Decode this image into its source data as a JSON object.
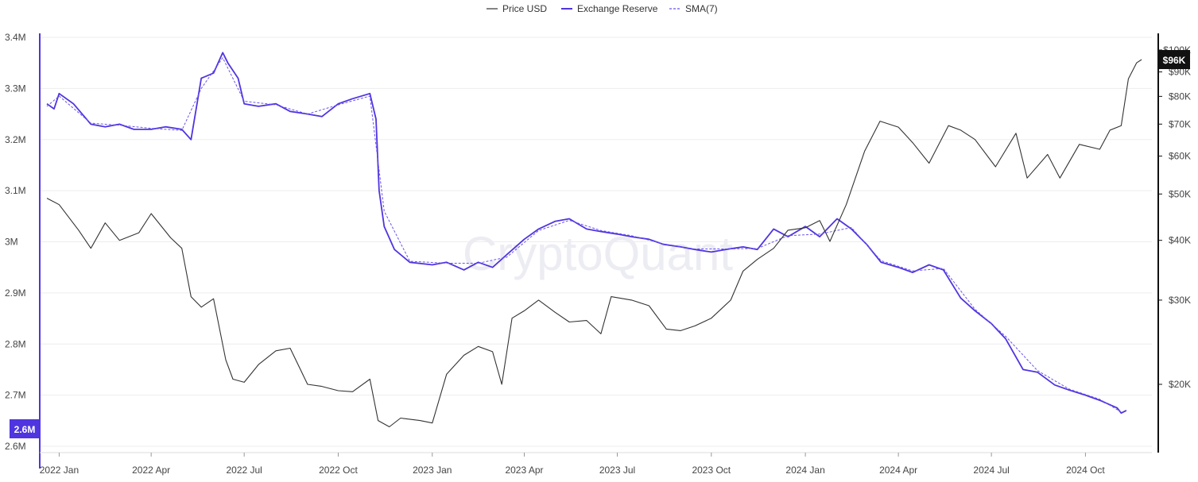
{
  "chart_data": {
    "type": "line",
    "watermark": "CryptoQuant",
    "legend": {
      "placement": "top-center",
      "items": [
        {
          "label": "Price USD",
          "style": "solid-thin",
          "color": "#333333"
        },
        {
          "label": "Exchange Reserve",
          "style": "solid-thick",
          "color": "#4f35e0"
        },
        {
          "label": "SMA(7)",
          "style": "dashed",
          "color": "#6a55ec"
        }
      ]
    },
    "x_axis": {
      "ticks": [
        "2022 Jan",
        "2022 Apr",
        "2022 Jul",
        "2022 Oct",
        "2023 Jan",
        "2023 Apr",
        "2023 Jul",
        "2023 Oct",
        "2024 Jan",
        "2024 Apr",
        "2024 Jul",
        "2024 Oct"
      ]
    },
    "y_left": {
      "label": "",
      "range": [
        2600000,
        3400000
      ],
      "ticks": [
        "3.4M",
        "3.3M",
        "3.2M",
        "3.1M",
        "3M",
        "2.9M",
        "2.8M",
        "2.7M",
        "2.6M"
      ],
      "current_badge": "2.6M",
      "color": "#4f35e0"
    },
    "y_right": {
      "label": "",
      "scale": "log",
      "ticks": [
        "$100K",
        "$90K",
        "$80K",
        "$70K",
        "$60K",
        "$50K",
        "$40K",
        "$30K",
        "$20K"
      ],
      "current_badge": "$96K",
      "color": "#111111"
    },
    "grid": true,
    "series": [
      {
        "name": "Exchange Reserve",
        "axis": "left",
        "color": "#4f35e0",
        "x": [
          "2021-12-20",
          "2021-12-27",
          "2022-01-01",
          "2022-01-15",
          "2022-02-01",
          "2022-02-15",
          "2022-03-01",
          "2022-03-15",
          "2022-04-01",
          "2022-04-15",
          "2022-05-01",
          "2022-05-10",
          "2022-05-20",
          "2022-06-01",
          "2022-06-10",
          "2022-06-15",
          "2022-06-25",
          "2022-07-01",
          "2022-07-15",
          "2022-08-01",
          "2022-08-15",
          "2022-09-01",
          "2022-09-15",
          "2022-10-01",
          "2022-10-15",
          "2022-11-01",
          "2022-11-07",
          "2022-11-10",
          "2022-11-15",
          "2022-11-25",
          "2022-12-10",
          "2023-01-01",
          "2023-01-15",
          "2023-02-01",
          "2023-02-15",
          "2023-03-01",
          "2023-03-15",
          "2023-04-01",
          "2023-04-15",
          "2023-05-01",
          "2023-05-15",
          "2023-06-01",
          "2023-06-15",
          "2023-07-01",
          "2023-07-15",
          "2023-08-01",
          "2023-08-15",
          "2023-09-01",
          "2023-09-15",
          "2023-10-01",
          "2023-10-15",
          "2023-11-01",
          "2023-11-15",
          "2023-12-01",
          "2023-12-15",
          "2024-01-01",
          "2024-01-15",
          "2024-02-01",
          "2024-02-15",
          "2024-03-01",
          "2024-03-15",
          "2024-04-01",
          "2024-04-15",
          "2024-05-01",
          "2024-05-15",
          "2024-06-01",
          "2024-06-15",
          "2024-07-01",
          "2024-07-15",
          "2024-08-01",
          "2024-08-15",
          "2024-09-01",
          "2024-09-15",
          "2024-10-01",
          "2024-10-15",
          "2024-11-01",
          "2024-11-05",
          "2024-11-10"
        ],
        "values": [
          3270000,
          3260000,
          3290000,
          3270000,
          3230000,
          3225000,
          3230000,
          3220000,
          3220000,
          3225000,
          3220000,
          3200000,
          3320000,
          3330000,
          3370000,
          3350000,
          3320000,
          3270000,
          3265000,
          3270000,
          3255000,
          3250000,
          3245000,
          3270000,
          3280000,
          3290000,
          3240000,
          3100000,
          3030000,
          2985000,
          2960000,
          2955000,
          2960000,
          2945000,
          2960000,
          2950000,
          2975000,
          3005000,
          3025000,
          3040000,
          3045000,
          3025000,
          3020000,
          3015000,
          3010000,
          3005000,
          2995000,
          2990000,
          2985000,
          2980000,
          2985000,
          2990000,
          2985000,
          3025000,
          3010000,
          3030000,
          3010000,
          3045000,
          3025000,
          2995000,
          2960000,
          2950000,
          2940000,
          2955000,
          2945000,
          2890000,
          2865000,
          2840000,
          2810000,
          2750000,
          2745000,
          2720000,
          2710000,
          2700000,
          2690000,
          2675000,
          2665000,
          2670000
        ]
      },
      {
        "name": "SMA(7)",
        "axis": "left",
        "color": "#6a55ec",
        "x": [
          "2021-12-20",
          "2022-01-01",
          "2022-02-01",
          "2022-03-01",
          "2022-04-01",
          "2022-05-01",
          "2022-05-20",
          "2022-06-10",
          "2022-07-01",
          "2022-08-01",
          "2022-09-01",
          "2022-10-01",
          "2022-11-01",
          "2022-11-15",
          "2022-12-10",
          "2023-01-15",
          "2023-02-15",
          "2023-03-15",
          "2023-04-15",
          "2023-05-15",
          "2023-06-15",
          "2023-07-15",
          "2023-08-15",
          "2023-09-15",
          "2023-10-15",
          "2023-11-15",
          "2023-12-15",
          "2024-01-15",
          "2024-02-15",
          "2024-03-15",
          "2024-04-15",
          "2024-05-15",
          "2024-06-15",
          "2024-07-15",
          "2024-08-15",
          "2024-09-15",
          "2024-10-15",
          "2024-11-05"
        ],
        "values": [
          3265000,
          3285000,
          3232000,
          3228000,
          3222000,
          3218000,
          3300000,
          3360000,
          3275000,
          3268000,
          3250000,
          3268000,
          3285000,
          3060000,
          2962000,
          2958000,
          2958000,
          2970000,
          3022000,
          3042000,
          3022000,
          3012000,
          2996000,
          2986000,
          2986000,
          2987000,
          3012000,
          3015000,
          3028000,
          2963000,
          2943000,
          2948000,
          2868000,
          2815000,
          2748000,
          2712000,
          2692000,
          2667000
        ]
      },
      {
        "name": "Price USD",
        "axis": "right",
        "color": "#333333",
        "x": [
          "2021-12-20",
          "2022-01-01",
          "2022-01-20",
          "2022-02-01",
          "2022-02-15",
          "2022-03-01",
          "2022-03-20",
          "2022-04-01",
          "2022-04-20",
          "2022-05-01",
          "2022-05-10",
          "2022-05-20",
          "2022-06-01",
          "2022-06-13",
          "2022-06-20",
          "2022-07-01",
          "2022-07-15",
          "2022-08-01",
          "2022-08-15",
          "2022-09-01",
          "2022-09-15",
          "2022-10-01",
          "2022-10-15",
          "2022-11-01",
          "2022-11-09",
          "2022-11-20",
          "2022-12-01",
          "2022-12-20",
          "2023-01-01",
          "2023-01-15",
          "2023-02-01",
          "2023-02-15",
          "2023-03-01",
          "2023-03-10",
          "2023-03-20",
          "2023-04-01",
          "2023-04-15",
          "2023-05-01",
          "2023-05-15",
          "2023-06-01",
          "2023-06-15",
          "2023-06-25",
          "2023-07-15",
          "2023-08-01",
          "2023-08-18",
          "2023-09-01",
          "2023-09-15",
          "2023-10-01",
          "2023-10-20",
          "2023-11-01",
          "2023-11-15",
          "2023-12-01",
          "2023-12-15",
          "2024-01-01",
          "2024-01-15",
          "2024-01-25",
          "2024-02-10",
          "2024-02-28",
          "2024-03-14",
          "2024-04-01",
          "2024-04-15",
          "2024-05-01",
          "2024-05-20",
          "2024-06-01",
          "2024-06-15",
          "2024-07-05",
          "2024-07-25",
          "2024-08-05",
          "2024-08-25",
          "2024-09-06",
          "2024-09-25",
          "2024-10-15",
          "2024-10-25",
          "2024-11-05",
          "2024-11-12",
          "2024-11-20",
          "2024-11-25"
        ],
        "values": [
          49000,
          47500,
          42000,
          38500,
          43500,
          40000,
          41500,
          45500,
          40500,
          38500,
          30500,
          29000,
          30200,
          22500,
          20500,
          20200,
          22000,
          23500,
          23800,
          20000,
          19800,
          19400,
          19300,
          20500,
          16800,
          16300,
          17000,
          16800,
          16600,
          21000,
          23000,
          24000,
          23400,
          20000,
          27500,
          28500,
          30000,
          28300,
          27000,
          27200,
          25500,
          30500,
          30000,
          29200,
          26100,
          25900,
          26500,
          27500,
          30000,
          34500,
          36500,
          38500,
          42000,
          42500,
          44000,
          39800,
          47500,
          61500,
          71000,
          69000,
          64000,
          58000,
          69500,
          68000,
          65000,
          57000,
          67000,
          54000,
          60500,
          54000,
          63500,
          62000,
          68000,
          69500,
          87000,
          94000,
          95500
        ]
      }
    ]
  }
}
